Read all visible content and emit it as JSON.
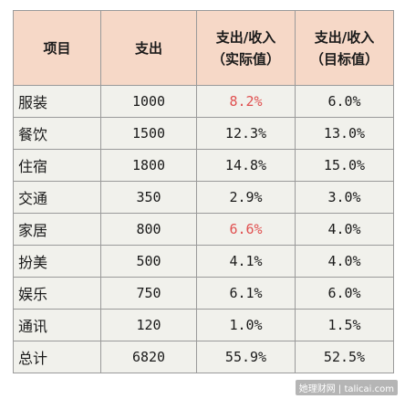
{
  "header": {
    "col1": "项目",
    "col2": "支出",
    "col3_line1": "支出/收入",
    "col3_line2": "（实际值）",
    "col4_line1": "支出/收入",
    "col4_line2": "（目标值）"
  },
  "rows": [
    {
      "item": "服装",
      "spend": "1000",
      "actual": "8.2%",
      "target": "6.0%"
    },
    {
      "item": "餐饮",
      "spend": "1500",
      "actual": "12.3%",
      "target": "13.0%"
    },
    {
      "item": "住宿",
      "spend": "1800",
      "actual": "14.8%",
      "target": "15.0%"
    },
    {
      "item": "交通",
      "spend": "350",
      "actual": "2.9%",
      "target": "3.0%"
    },
    {
      "item": "家居",
      "spend": "800",
      "actual": "6.6%",
      "target": "4.0%"
    },
    {
      "item": "扮美",
      "spend": "500",
      "actual": "4.1%",
      "target": "4.0%"
    },
    {
      "item": "娱乐",
      "spend": "750",
      "actual": "6.1%",
      "target": "6.0%"
    },
    {
      "item": "通讯",
      "spend": "120",
      "actual": "1.0%",
      "target": "1.5%"
    },
    {
      "item": "总计",
      "spend": "6820",
      "actual": "55.9%",
      "target": "52.5%"
    }
  ],
  "colors": {
    "header_bg": "#f6d8c7",
    "row_bg": "#f1f1ec",
    "over_target": "#e05050"
  },
  "watermark": "她理财网 | talicai.com"
}
